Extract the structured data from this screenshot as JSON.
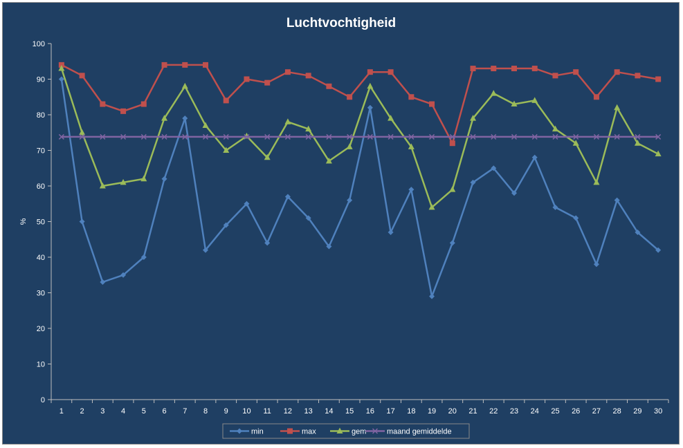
{
  "chart_data": {
    "type": "line",
    "title": "Luchtvochtigheid",
    "xlabel": "",
    "ylabel": "%",
    "ylim": [
      0,
      100
    ],
    "yticks": [
      0,
      10,
      20,
      30,
      40,
      50,
      60,
      70,
      80,
      90,
      100
    ],
    "categories": [
      "1",
      "2",
      "3",
      "4",
      "5",
      "6",
      "7",
      "8",
      "9",
      "10",
      "11",
      "12",
      "13",
      "14",
      "15",
      "16",
      "17",
      "18",
      "19",
      "20",
      "21",
      "22",
      "23",
      "24",
      "25",
      "26",
      "27",
      "28",
      "29",
      "30"
    ],
    "grid": false,
    "legend": "bottom",
    "series": [
      {
        "name": "min",
        "color": "#4f81bd",
        "marker": "diamond",
        "values": [
          90,
          50,
          33,
          35,
          40,
          62,
          79,
          42,
          49,
          55,
          44,
          57,
          51,
          43,
          56,
          82,
          47,
          59,
          29,
          44,
          61,
          65,
          58,
          68,
          54,
          51,
          38,
          56,
          47,
          42
        ]
      },
      {
        "name": "max",
        "color": "#c0504d",
        "marker": "square",
        "values": [
          94,
          91,
          83,
          81,
          83,
          94,
          94,
          94,
          84,
          90,
          89,
          92,
          91,
          88,
          85,
          92,
          92,
          85,
          83,
          72,
          93,
          93,
          93,
          93,
          91,
          92,
          85,
          92,
          91,
          90
        ]
      },
      {
        "name": "gem",
        "color": "#9bbb59",
        "marker": "triangle",
        "values": [
          93,
          75,
          60,
          61,
          62,
          79,
          88,
          77,
          70,
          74,
          68,
          78,
          76,
          67,
          71,
          88,
          79,
          71,
          54,
          59,
          79,
          86,
          83,
          84,
          76,
          72,
          61,
          82,
          72,
          69
        ]
      },
      {
        "name": "maand gemiddelde",
        "color": "#8064a2",
        "marker": "x",
        "values": [
          73.8,
          73.8,
          73.8,
          73.8,
          73.8,
          73.8,
          73.8,
          73.8,
          73.8,
          73.8,
          73.8,
          73.8,
          73.8,
          73.8,
          73.8,
          73.8,
          73.8,
          73.8,
          73.8,
          73.8,
          73.8,
          73.8,
          73.8,
          73.8,
          73.8,
          73.8,
          73.8,
          73.8,
          73.8,
          73.8
        ]
      }
    ]
  }
}
